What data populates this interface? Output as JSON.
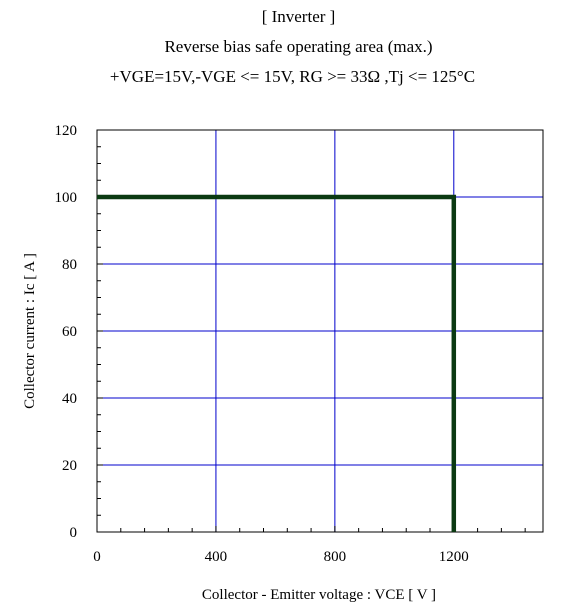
{
  "chart_data": {
    "type": "line",
    "title_lines": [
      "[ Inverter ]",
      "Reverse bias safe operating area (max.)",
      "+VGE=15V,-VGE <= 15V, RG >= 33Ω ,Tj <= 125°C"
    ],
    "xlabel": "Collector - Emitter voltage  :  VCE  [ V ]",
    "ylabel": "Collector current  : Ic  [ A ]",
    "xlim": [
      0,
      1500
    ],
    "ylim": [
      0,
      120
    ],
    "x_ticks": [
      0,
      400,
      800,
      1200
    ],
    "x_tick_labels": [
      "0",
      "400",
      "800",
      "1200"
    ],
    "y_ticks": [
      0,
      20,
      40,
      60,
      80,
      100,
      120
    ],
    "y_tick_labels": [
      "0",
      "20",
      "40",
      "60",
      "80",
      "100",
      "120"
    ],
    "grid": true,
    "grid_color": "#0000cc",
    "series": [
      {
        "color": "#0b3a12",
        "x": [
          0,
          1200,
          1200
        ],
        "y": [
          100,
          100,
          0
        ]
      }
    ]
  }
}
